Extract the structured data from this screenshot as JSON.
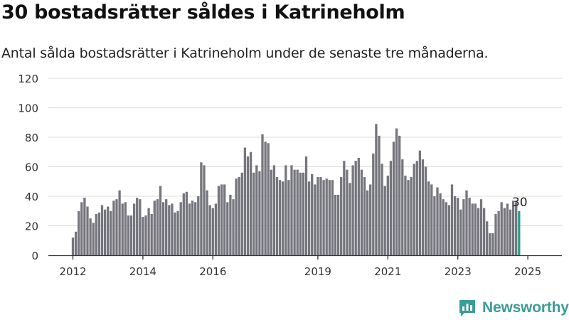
{
  "header": {
    "title": "30 bostadsrätter såldes i Katrineholm",
    "subtitle": "Antal sålda bostadsrätter i Katrineholm under de senaste tre månaderna."
  },
  "brand": {
    "name": "Newsworthy",
    "icon": "newsworthy-chart-bubble-icon",
    "color": "#3a9d96"
  },
  "colors": {
    "bar": "#75757d",
    "highlight": "#2e9a92",
    "grid": "#dcdcdc",
    "axis": "#333333"
  },
  "chart_data": {
    "type": "bar",
    "title": "30 bostadsrätter såldes i Katrineholm",
    "subtitle": "Antal sålda bostadsrätter i Katrineholm under de senaste tre månaderna.",
    "xlabel": "",
    "ylabel": "",
    "ylim": [
      0,
      120
    ],
    "yticks": [
      0,
      20,
      40,
      60,
      80,
      100,
      120
    ],
    "grid": "horizontal",
    "legend": "none",
    "x_start": "2012-01",
    "x_frequency": "monthly",
    "xtick_labels": [
      {
        "label": "2012",
        "x": "2012-01"
      },
      {
        "label": "2014",
        "x": "2014-01"
      },
      {
        "label": "2016",
        "x": "2016-01"
      },
      {
        "label": "2019",
        "x": "2019-01"
      },
      {
        "label": "2021",
        "x": "2021-01"
      },
      {
        "label": "2023",
        "x": "2023-01"
      },
      {
        "label": "2025",
        "x": "2025-01"
      }
    ],
    "values": [
      12,
      16,
      30,
      36,
      39,
      33,
      25,
      22,
      28,
      29,
      34,
      31,
      33,
      30,
      37,
      38,
      44,
      35,
      36,
      27,
      27,
      35,
      39,
      38,
      26,
      27,
      32,
      28,
      37,
      38,
      47,
      36,
      38,
      34,
      35,
      29,
      30,
      36,
      42,
      43,
      35,
      37,
      36,
      40,
      63,
      61,
      44,
      34,
      32,
      35,
      47,
      48,
      48,
      36,
      41,
      38,
      52,
      53,
      56,
      73,
      67,
      70,
      56,
      61,
      57,
      82,
      77,
      76,
      58,
      61,
      53,
      51,
      50,
      61,
      51,
      61,
      58,
      58,
      56,
      56,
      67,
      50,
      55,
      48,
      53,
      53,
      51,
      52,
      51,
      51,
      41,
      41,
      53,
      64,
      58,
      49,
      61,
      64,
      66,
      58,
      53,
      44,
      48,
      69,
      89,
      81,
      62,
      47,
      54,
      64,
      77,
      86,
      81,
      65,
      54,
      51,
      53,
      62,
      64,
      71,
      65,
      60,
      50,
      48,
      40,
      46,
      42,
      38,
      36,
      34,
      48,
      40,
      39,
      31,
      38,
      44,
      39,
      35,
      35,
      32,
      38,
      32,
      23,
      15,
      15,
      28,
      30,
      36,
      32,
      35,
      31,
      37,
      36,
      30
    ],
    "highlight_last": true,
    "last_value_label": "30"
  }
}
